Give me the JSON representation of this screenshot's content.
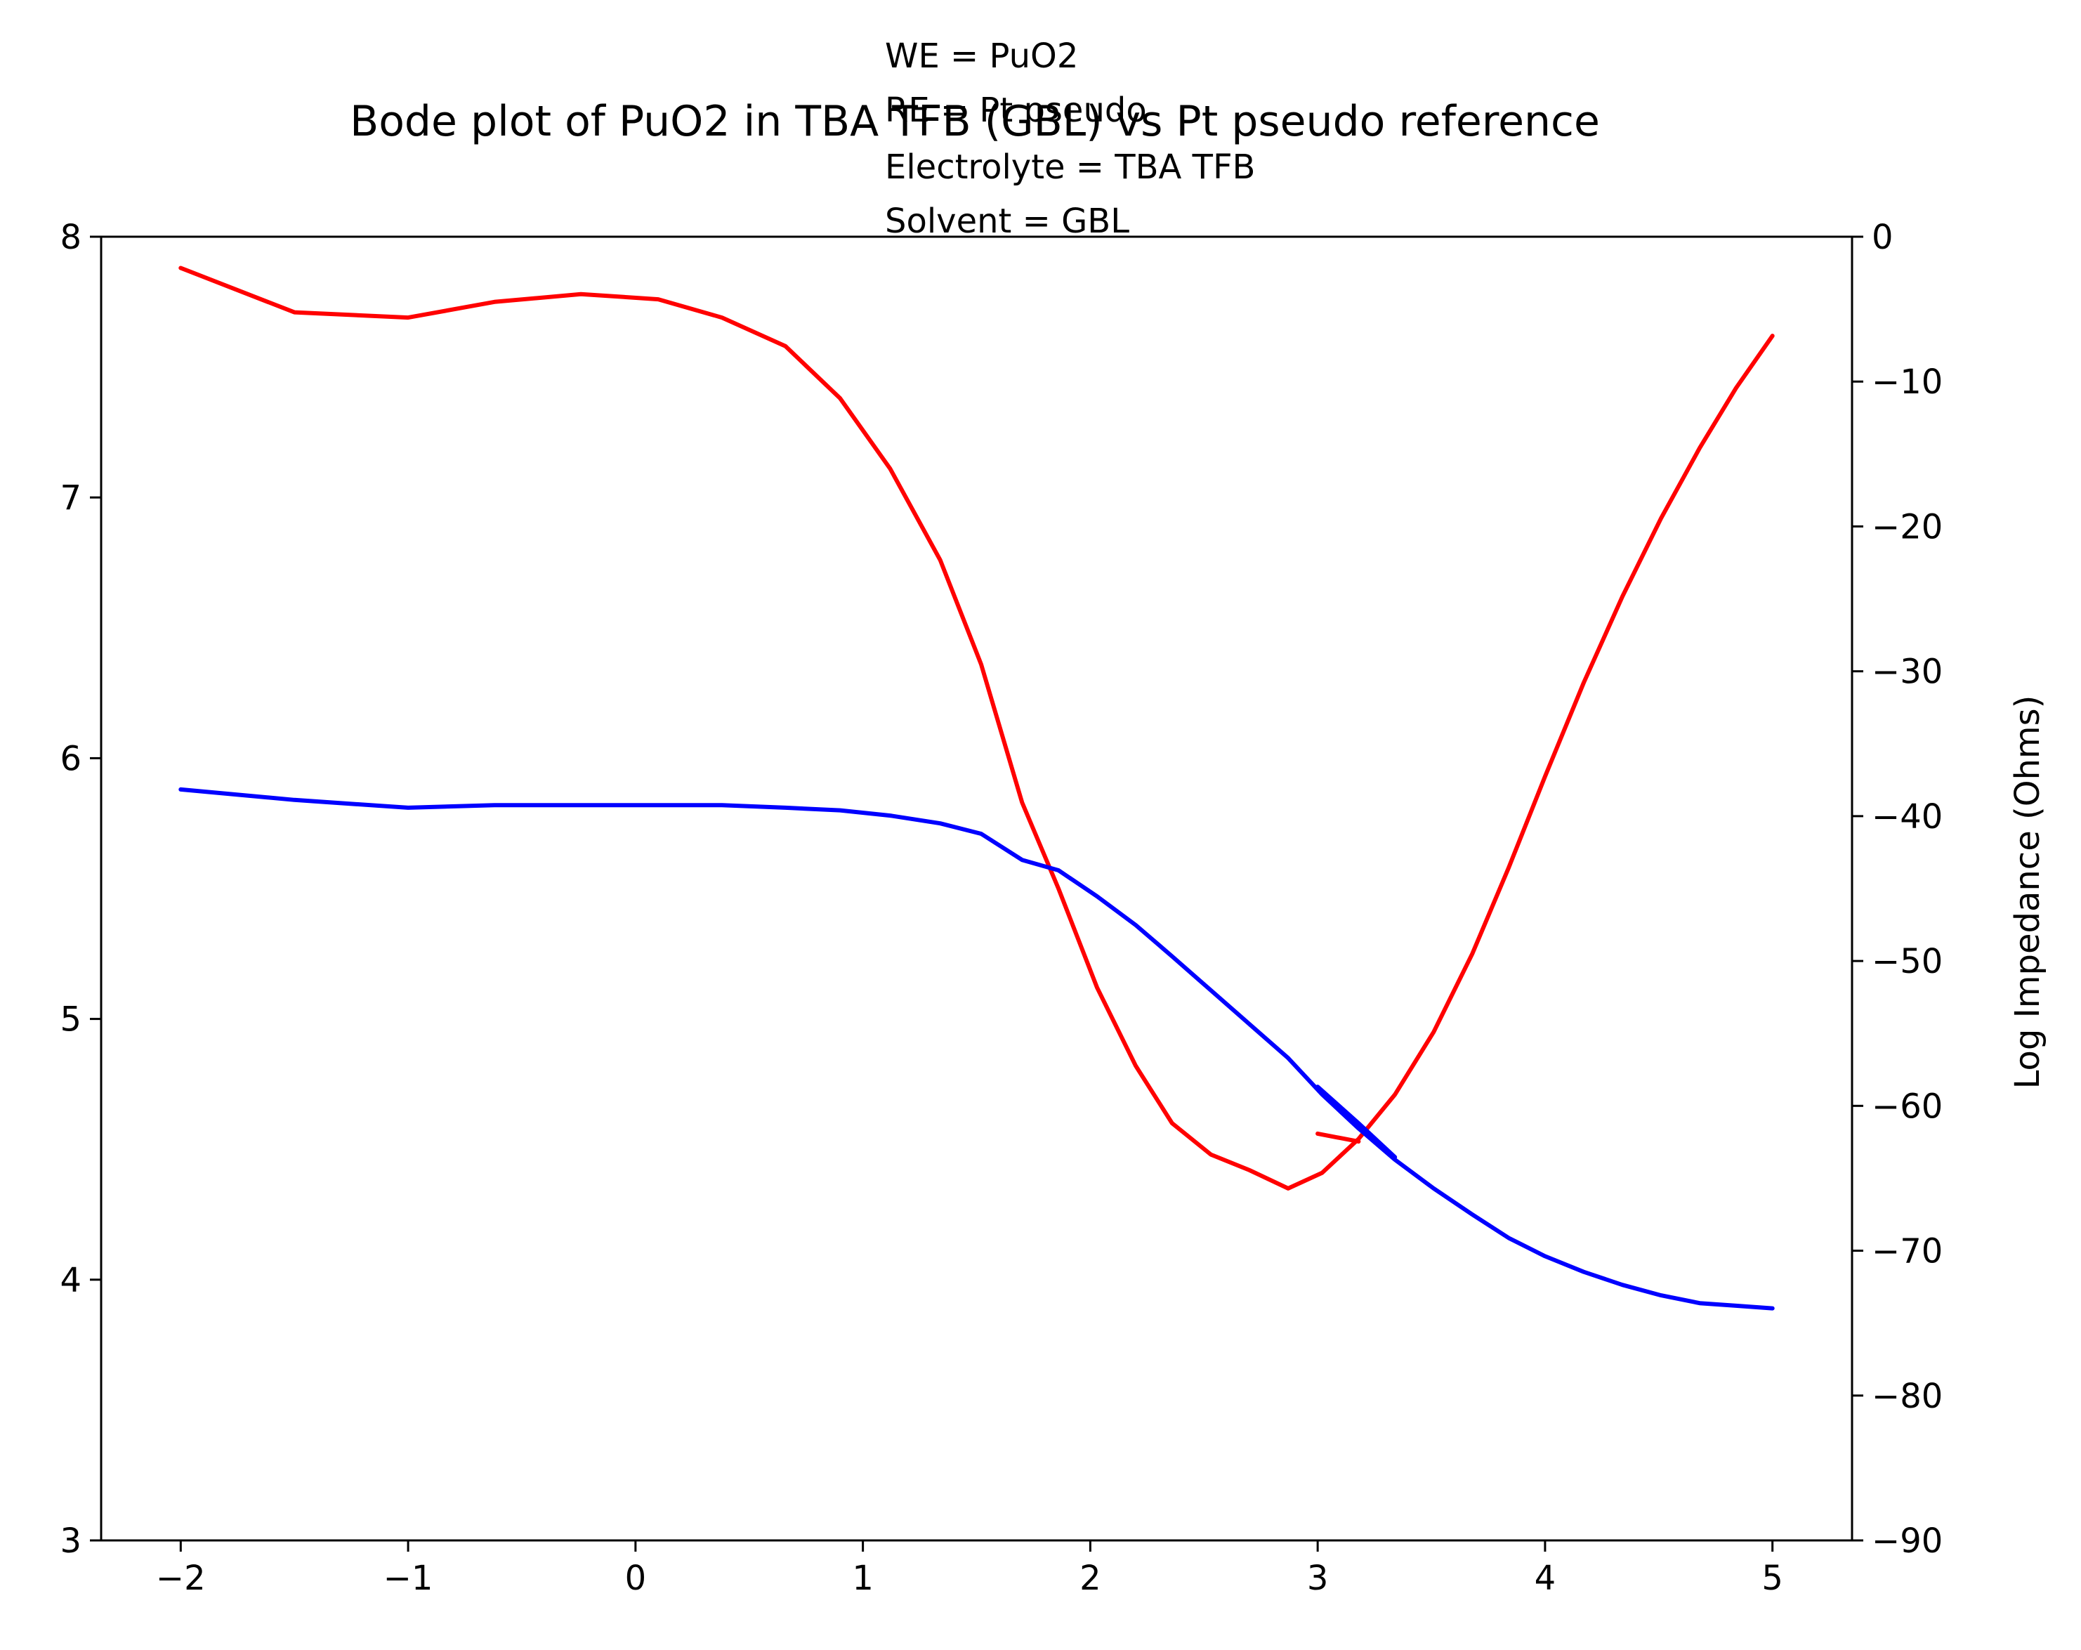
{
  "chart_data": {
    "type": "line",
    "title": "Bode plot of PuO2 in TBA TFB (GBL) vs Pt pseudo reference",
    "annotation_lines": [
      "WE = PuO2",
      "RE = Pt pseudo",
      "Electrolyte = TBA TFB",
      "Solvent = GBL"
    ],
    "xlabel": "",
    "ylabel_left": "",
    "ylabel_right": "Log Impedance (Ohms)",
    "xlim": [
      -2.35,
      5.35
    ],
    "ylim_left": [
      3,
      8
    ],
    "ylim_right": [
      -90,
      0
    ],
    "xticks": [
      -2,
      -1,
      0,
      1,
      2,
      3,
      4,
      5
    ],
    "xtick_labels": [
      "−2",
      "−1",
      "0",
      "1",
      "2",
      "3",
      "4",
      "5"
    ],
    "yticks_left": [
      3,
      4,
      5,
      6,
      7,
      8
    ],
    "ytick_labels_left": [
      "3",
      "4",
      "5",
      "6",
      "7",
      "8"
    ],
    "yticks_right": [
      0,
      -10,
      -20,
      -30,
      -40,
      -50,
      -60,
      -70,
      -80,
      -90
    ],
    "ytick_labels_right": [
      "0",
      "−10",
      "−20",
      "−30",
      "−40",
      "−50",
      "−60",
      "−70",
      "−80",
      "−90"
    ],
    "grid": false,
    "series": [
      {
        "color": "#ff0000",
        "axis": "left",
        "x": [
          -2.0,
          -1.5,
          -1.0,
          -0.62,
          -0.24,
          0.1,
          0.38,
          0.66,
          0.9,
          1.12,
          1.34,
          1.52,
          1.7,
          1.86,
          2.03,
          2.2,
          2.36,
          2.53,
          2.7,
          2.87,
          3.02,
          3.18,
          3.34,
          3.51,
          3.68,
          3.84,
          4.0,
          4.17,
          4.34,
          4.51,
          4.68,
          4.84,
          5.0
        ],
        "y": [
          7.88,
          7.71,
          7.69,
          7.75,
          7.78,
          7.76,
          7.69,
          7.58,
          7.38,
          7.11,
          6.76,
          6.36,
          5.83,
          5.5,
          5.12,
          4.82,
          4.6,
          4.48,
          4.42,
          4.35,
          4.41,
          4.54,
          4.71,
          4.95,
          5.25,
          5.58,
          5.93,
          6.29,
          6.62,
          6.92,
          7.19,
          7.42,
          7.62
        ]
      },
      {
        "color": "#ff0000",
        "axis": "left",
        "x": [
          3.0,
          3.18
        ],
        "y": [
          4.56,
          4.53
        ]
      },
      {
        "color": "#0000ff",
        "axis": "left",
        "x": [
          -2.0,
          -1.5,
          -1.0,
          -0.62,
          -0.24,
          0.1,
          0.38,
          0.66,
          0.9,
          1.12,
          1.34,
          1.52,
          1.7,
          1.86,
          2.03,
          2.2,
          2.36,
          2.53,
          2.7,
          2.87,
          3.02,
          3.18,
          3.34,
          3.51,
          3.68,
          3.84,
          4.0,
          4.17,
          4.34,
          4.51,
          4.68,
          4.84,
          5.0
        ],
        "y": [
          5.88,
          5.84,
          5.81,
          5.82,
          5.82,
          5.82,
          5.82,
          5.81,
          5.8,
          5.78,
          5.75,
          5.71,
          5.61,
          5.57,
          5.47,
          5.36,
          5.24,
          5.11,
          4.98,
          4.85,
          4.71,
          4.58,
          4.46,
          4.35,
          4.25,
          4.16,
          4.09,
          4.03,
          3.98,
          3.94,
          3.91,
          3.9,
          3.89
        ]
      },
      {
        "color": "#0000ff",
        "axis": "left",
        "x": [
          3.0,
          3.18,
          3.34
        ],
        "y": [
          4.74,
          4.6,
          4.47
        ]
      }
    ]
  }
}
